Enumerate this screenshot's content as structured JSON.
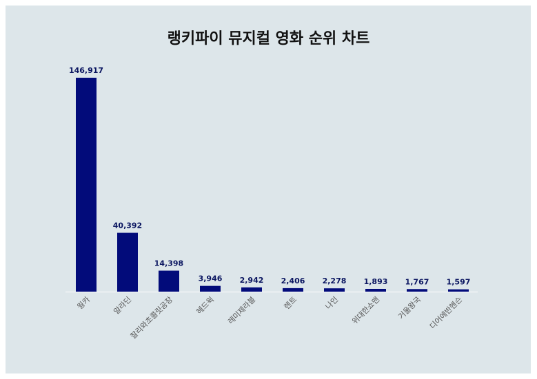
{
  "chart_data": {
    "type": "bar",
    "title": "랭키파이 뮤지컬 영화 순위 차트",
    "xlabel": "",
    "ylabel": "",
    "categories": [
      "웡카",
      "알라딘",
      "찰리와초콜릿공장",
      "헤드윅",
      "레미제라블",
      "렌트",
      "나인",
      "위대한쇼맨",
      "거울왕국",
      "디어에반헨슨"
    ],
    "values": [
      146917,
      40392,
      14398,
      3946,
      2942,
      2406,
      2278,
      1893,
      1767,
      1597
    ],
    "value_labels": [
      "146,917",
      "40,392",
      "14,398",
      "3,946",
      "2,942",
      "2,406",
      "2,278",
      "1,893",
      "1,767",
      "1,597"
    ],
    "ylim": [
      0,
      146917
    ],
    "grid": false,
    "legend": "none",
    "colors": {
      "bar": "#020b7a",
      "value_label": "#0a1560",
      "background": "#dde6ea",
      "baseline": "#ffffff"
    }
  }
}
